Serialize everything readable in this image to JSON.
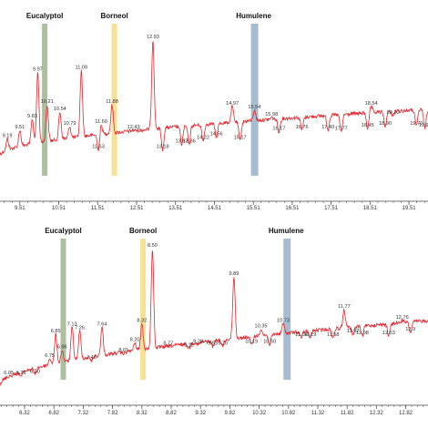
{
  "colors": {
    "trace": "#e8242c",
    "axis": "#444444",
    "eucalyptol": "#a3b894",
    "borneol": "#f7de8a",
    "humulene": "#9bb6c9"
  },
  "chart_data": [
    {
      "type": "line",
      "xlim": [
        9.0,
        20.0
      ],
      "ylim": [
        0,
        100
      ],
      "x_ticks": [
        9.51,
        10.51,
        11.51,
        12.51,
        13.51,
        14.51,
        15.51,
        16.51,
        17.51,
        18.51,
        19.51
      ],
      "tick_labels": [
        "9.51",
        "10.51",
        "11.51",
        "12.51",
        "13.51",
        "14.51",
        "15.51",
        "16.51",
        "17.51",
        "18.51",
        "19.51"
      ],
      "markers": [
        {
          "name": "Eucalyptol",
          "x": 10.15
        },
        {
          "name": "Borneol",
          "x": 11.94
        },
        {
          "name": "Humulene",
          "x": 15.52
        }
      ],
      "peaks": [
        {
          "x": 9.19,
          "y": 33,
          "label": "9.19"
        },
        {
          "x": 9.51,
          "y": 38,
          "label": "9.51"
        },
        {
          "x": 9.83,
          "y": 44,
          "label": "9.83"
        },
        {
          "x": 9.97,
          "y": 70,
          "label": "9.97"
        },
        {
          "x": 10.21,
          "y": 52,
          "label": "10.21"
        },
        {
          "x": 10.54,
          "y": 48,
          "label": "10.54"
        },
        {
          "x": 10.79,
          "y": 40,
          "label": "10.79"
        },
        {
          "x": 11.09,
          "y": 71,
          "label": "11.09"
        },
        {
          "x": 11.53,
          "y": 27,
          "label": "11.53"
        },
        {
          "x": 11.6,
          "y": 41,
          "label": "11.60"
        },
        {
          "x": 11.88,
          "y": 52,
          "label": "11.88"
        },
        {
          "x": 12.93,
          "y": 88,
          "label": "12.93"
        },
        {
          "x": 12.43,
          "y": 38,
          "label": "12.43"
        },
        {
          "x": 13.18,
          "y": 27,
          "label": "13.18"
        },
        {
          "x": 13.67,
          "y": 30,
          "label": "13.67"
        },
        {
          "x": 13.86,
          "y": 30,
          "label": "13.86"
        },
        {
          "x": 14.22,
          "y": 32,
          "label": "14.22"
        },
        {
          "x": 14.56,
          "y": 34,
          "label": "14.56"
        },
        {
          "x": 14.97,
          "y": 51,
          "label": "14.97"
        },
        {
          "x": 15.17,
          "y": 32,
          "label": "15.17"
        },
        {
          "x": 15.54,
          "y": 49,
          "label": "15.54"
        },
        {
          "x": 15.98,
          "y": 45,
          "label": "15.98"
        },
        {
          "x": 16.17,
          "y": 37,
          "label": "16.17"
        },
        {
          "x": 16.76,
          "y": 38,
          "label": "16.76"
        },
        {
          "x": 17.43,
          "y": 38,
          "label": "17.43"
        },
        {
          "x": 17.77,
          "y": 37,
          "label": "17.77"
        },
        {
          "x": 18.45,
          "y": 39,
          "label": "18.45"
        },
        {
          "x": 18.54,
          "y": 51,
          "label": "18.54"
        },
        {
          "x": 18.9,
          "y": 40,
          "label": "18.90"
        },
        {
          "x": 19.1,
          "y": 46,
          "label": "19.10"
        },
        {
          "x": 19.7,
          "y": 40,
          "label": "19.70"
        },
        {
          "x": 19.92,
          "y": 39,
          "label": "19.92"
        }
      ]
    },
    {
      "type": "line",
      "xlim": [
        5.9,
        13.2
      ],
      "ylim": [
        0,
        100
      ],
      "x_ticks": [
        6.32,
        6.82,
        7.32,
        7.82,
        8.32,
        8.82,
        9.32,
        9.82,
        10.32,
        10.82,
        11.32,
        11.82,
        12.32,
        12.82
      ],
      "tick_labels": [
        "6.32",
        "6.82",
        "7.32",
        "7.82",
        "8.32",
        "8.82",
        "9.32",
        "9.82",
        "10.32",
        "10.82",
        "11.32",
        "11.82",
        "12.32",
        "12.82"
      ],
      "markers": [
        {
          "name": "Eucalyptol",
          "x": 6.98
        },
        {
          "name": "Borneol",
          "x": 8.34
        },
        {
          "name": "Humulene",
          "x": 10.78
        }
      ],
      "peaks": [
        {
          "x": 6.05,
          "y": 15,
          "label": "6.05"
        },
        {
          "x": 6.26,
          "y": 15,
          "label": "6.26"
        },
        {
          "x": 6.5,
          "y": 16,
          "label": "6.50"
        },
        {
          "x": 6.75,
          "y": 25,
          "label": "6.75"
        },
        {
          "x": 6.85,
          "y": 39,
          "label": "6.85"
        },
        {
          "x": 6.96,
          "y": 30,
          "label": "6.96"
        },
        {
          "x": 7.13,
          "y": 43,
          "label": "7.13"
        },
        {
          "x": 7.26,
          "y": 41,
          "label": "7.26"
        },
        {
          "x": 7.46,
          "y": 24,
          "label": "7.46"
        },
        {
          "x": 7.64,
          "y": 43,
          "label": "7.64"
        },
        {
          "x": 8.01,
          "y": 28,
          "label": "8.01"
        },
        {
          "x": 8.2,
          "y": 34,
          "label": "8.20"
        },
        {
          "x": 8.32,
          "y": 45,
          "label": "8.32"
        },
        {
          "x": 8.5,
          "y": 88,
          "label": "8.50"
        },
        {
          "x": 8.77,
          "y": 32,
          "label": "8.77"
        },
        {
          "x": 9.12,
          "y": 31,
          "label": "9.12"
        },
        {
          "x": 9.28,
          "y": 33,
          "label": "9.28"
        },
        {
          "x": 9.53,
          "y": 32,
          "label": "9.53"
        },
        {
          "x": 9.7,
          "y": 32,
          "label": "9.70"
        },
        {
          "x": 9.89,
          "y": 72,
          "label": "9.89"
        },
        {
          "x": 10.19,
          "y": 33,
          "label": "10.19"
        },
        {
          "x": 10.35,
          "y": 42,
          "label": "10.35"
        },
        {
          "x": 10.5,
          "y": 33,
          "label": "10.50"
        },
        {
          "x": 10.73,
          "y": 45,
          "label": "10.73"
        },
        {
          "x": 11.04,
          "y": 37,
          "label": "11.04"
        },
        {
          "x": 11.19,
          "y": 37,
          "label": "11.19"
        },
        {
          "x": 11.58,
          "y": 37,
          "label": "11.58"
        },
        {
          "x": 11.77,
          "y": 53,
          "label": "11.77"
        },
        {
          "x": 11.92,
          "y": 39,
          "label": "11.92"
        },
        {
          "x": 12.08,
          "y": 38,
          "label": "12.08"
        },
        {
          "x": 12.53,
          "y": 38,
          "label": "12.53"
        },
        {
          "x": 12.76,
          "y": 47,
          "label": "12.76"
        },
        {
          "x": 12.9,
          "y": 40,
          "label": "12.9"
        }
      ]
    }
  ]
}
